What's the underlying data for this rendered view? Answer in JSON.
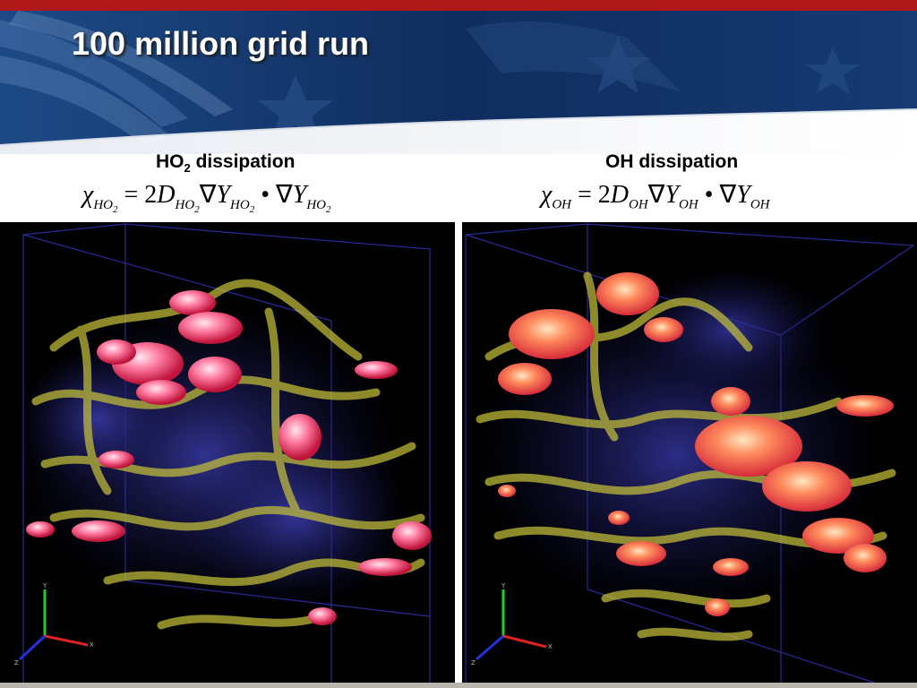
{
  "slide": {
    "title": "100 million grid run",
    "colors": {
      "top_strip": "#b01818",
      "banner_navy": "#123466",
      "panel_bg": "#000000"
    }
  },
  "panels": [
    {
      "caption_main": "HO",
      "caption_sub": "2",
      "caption_rest": " dissipation",
      "formula": {
        "chi": "χ",
        "lhs_sub": "HO",
        "lhs_subsub": "2",
        "mid": " = 2",
        "d": "D",
        "d_sub": "HO",
        "d_subsub": "2",
        "nabla1": "∇",
        "y1": "Y",
        "y1_sub": "HO",
        "y1_subsub": "2",
        "dot": " • ",
        "nabla2": "∇",
        "y2": "Y",
        "y2_sub": "HO",
        "y2_subsub": "2"
      },
      "axes": {
        "y": "Y",
        "x": "X",
        "z": "Z"
      }
    },
    {
      "caption_main": "OH dissipation",
      "formula": {
        "chi": "χ",
        "lhs_sub": "OH",
        "mid": " = 2",
        "d": "D",
        "d_sub": "OH",
        "nabla1": "∇",
        "y1": "Y",
        "y1_sub": "OH",
        "dot": " • ",
        "nabla2": "∇",
        "y2": "Y",
        "y2_sub": "OH"
      },
      "axes": {
        "y": "Y",
        "x": "X",
        "z": "Z"
      }
    }
  ]
}
